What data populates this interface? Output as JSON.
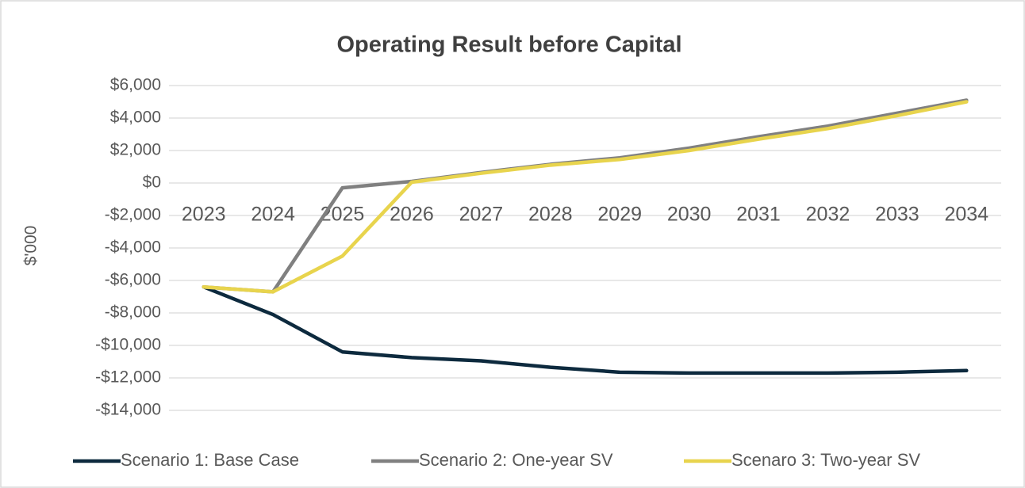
{
  "chart_data": {
    "type": "line",
    "title": "Operating Result before Capital",
    "y_label": "$'000",
    "categories": [
      "2023",
      "2024",
      "2025",
      "2026",
      "2027",
      "2028",
      "2029",
      "2030",
      "2031",
      "2032",
      "2033",
      "2034"
    ],
    "series": [
      {
        "name": "Scenario 1: Base Case",
        "color": "#0d2a3e",
        "values": [
          -6400,
          -8100,
          -10400,
          -10750,
          -10950,
          -11350,
          -11650,
          -11700,
          -11700,
          -11700,
          -11650,
          -11550
        ]
      },
      {
        "name": "Scenario 2: One-year SV",
        "color": "#808080",
        "values": [
          -6400,
          -6700,
          -300,
          100,
          650,
          1150,
          1550,
          2150,
          2850,
          3500,
          4300,
          5100
        ]
      },
      {
        "name": "Scenaro 3: Two-year SV",
        "color": "#e8d44d",
        "values": [
          -6400,
          -6700,
          -4500,
          50,
          600,
          1100,
          1450,
          2000,
          2700,
          3350,
          4150,
          5000
        ]
      }
    ],
    "ylim": [
      -14000,
      6000
    ],
    "yticks": [
      {
        "value": 6000,
        "label": "$6,000"
      },
      {
        "value": 4000,
        "label": "$4,000"
      },
      {
        "value": 2000,
        "label": "$2,000"
      },
      {
        "value": 0,
        "label": "$0"
      },
      {
        "value": -2000,
        "label": "-$2,000"
      },
      {
        "value": -4000,
        "label": "-$4,000"
      },
      {
        "value": -6000,
        "label": "-$6,000"
      },
      {
        "value": -8000,
        "label": "-$8,000"
      },
      {
        "value": -10000,
        "label": "-$10,000"
      },
      {
        "value": -12000,
        "label": "-$12,000"
      },
      {
        "value": -14000,
        "label": "-$14,000"
      }
    ],
    "grid": true,
    "legend": "bottom"
  }
}
